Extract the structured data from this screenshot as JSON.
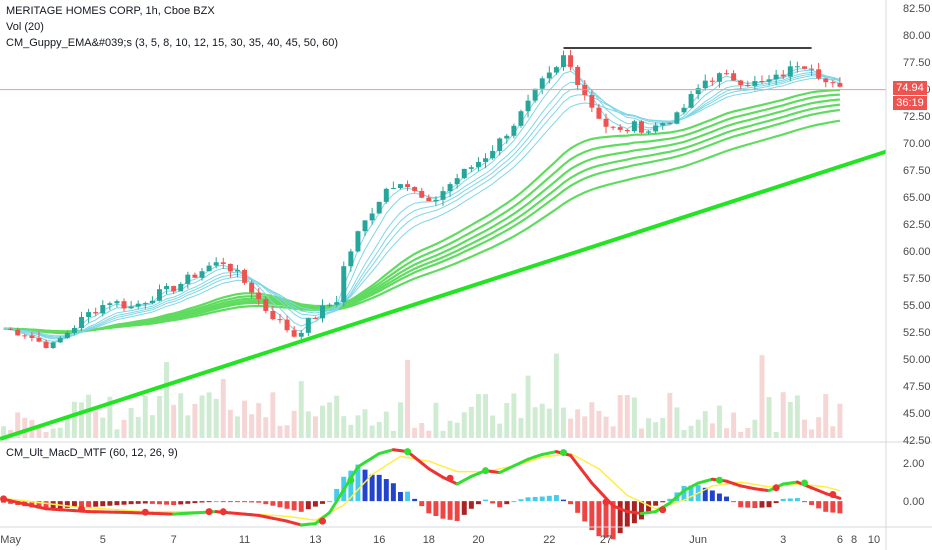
{
  "legend": {
    "symbol_line": "MERITAGE HOMES CORP, 1h, Cboe BZX",
    "volume_line": "Vol (20)",
    "guppy_line": "CM_Guppy_EMA&#039;s (3, 5, 8, 10, 12, 15, 30, 35, 40, 45, 50, 60)",
    "macd_line": "CM_Ult_MacD_MTF (60, 12, 26, 9)"
  },
  "price_badge": {
    "last_price": "74.94",
    "countdown": "36:19",
    "color": "#ef5350"
  },
  "colors": {
    "up_candle": "#26a69a",
    "down_candle": "#ef5350",
    "fast_ema": "#7fd6e6",
    "slow_ema": "#5fdc5f",
    "trendline": "#22e422",
    "resistance": "#000000",
    "macd_up": "#33dd33",
    "macd_down": "#ee3333",
    "signal": "#ffee44",
    "hist_pos_strong": "#2244cc",
    "hist_pos_weak": "#44ccee",
    "hist_neg_strong": "#aa2222",
    "hist_neg_weak": "#ee4444"
  },
  "chart_data": [
    {
      "type": "candlestick",
      "name": "price",
      "ylim": [
        42.5,
        82.5
      ],
      "y_ticks": [
        "82.50",
        "80.00",
        "77.50",
        "75.00",
        "72.50",
        "70.00",
        "67.50",
        "65.00",
        "62.50",
        "60.00",
        "57.50",
        "55.00",
        "52.50",
        "50.00",
        "47.50",
        "45.00",
        "42.50"
      ],
      "x_ticks": [
        "May",
        "5",
        "7",
        "11",
        "13",
        "16",
        "18",
        "20",
        "22",
        "27",
        "Jun",
        "3",
        "6",
        "8",
        "10"
      ],
      "close_path": [
        [
          0,
          52.8
        ],
        [
          3,
          52.4
        ],
        [
          5,
          51.6
        ],
        [
          7,
          51.2
        ],
        [
          9,
          52.5
        ],
        [
          12,
          54.2
        ],
        [
          15,
          55.4
        ],
        [
          18,
          54.8
        ],
        [
          21,
          55.8
        ],
        [
          24,
          56.6
        ],
        [
          27,
          57.8
        ],
        [
          29,
          58.6
        ],
        [
          31,
          59.0
        ],
        [
          33,
          57.8
        ],
        [
          35,
          56.4
        ],
        [
          37,
          54.6
        ],
        [
          39,
          53.4
        ],
        [
          41,
          52.2
        ],
        [
          43,
          53.4
        ],
        [
          45,
          54.6
        ],
        [
          47,
          55.5
        ],
        [
          48,
          58.5
        ],
        [
          50,
          61.6
        ],
        [
          52,
          63.8
        ],
        [
          54,
          65.8
        ],
        [
          56,
          66.6
        ],
        [
          58,
          65.4
        ],
        [
          60,
          64.2
        ],
        [
          62,
          65.6
        ],
        [
          64,
          66.8
        ],
        [
          66,
          67.8
        ],
        [
          68,
          68.8
        ],
        [
          70,
          70.2
        ],
        [
          72,
          71.8
        ],
        [
          74,
          73.6
        ],
        [
          76,
          75.6
        ],
        [
          78,
          76.8
        ],
        [
          79,
          78.0
        ],
        [
          80,
          77.0
        ],
        [
          81,
          75.8
        ],
        [
          83,
          73.4
        ],
        [
          85,
          71.6
        ],
        [
          87,
          71.0
        ],
        [
          89,
          71.6
        ],
        [
          91,
          71.2
        ],
        [
          93,
          71.9
        ],
        [
          95,
          72.4
        ],
        [
          97,
          74.2
        ],
        [
          99,
          75.8
        ],
        [
          101,
          76.2
        ],
        [
          103,
          76.0
        ],
        [
          105,
          75.6
        ],
        [
          107,
          75.5
        ],
        [
          109,
          76.0
        ],
        [
          111,
          76.8
        ],
        [
          112,
          77.4
        ],
        [
          114,
          77.2
        ],
        [
          116,
          75.6
        ],
        [
          118,
          74.9
        ]
      ],
      "ema_fast_values": [
        3,
        5,
        8,
        10,
        12,
        15
      ],
      "ema_slow_values": [
        30,
        35,
        40,
        45,
        50,
        60
      ],
      "trendline": {
        "from": [
          0,
          42.6
        ],
        "to": [
          125,
          69.2
        ]
      },
      "resistance_level": 78.8,
      "resistance_range": [
        79,
        114
      ],
      "last_price": 74.94
    },
    {
      "type": "bar",
      "name": "volume",
      "bar_count": 120
    },
    {
      "type": "line",
      "name": "macd",
      "ylim": [
        -1.2,
        3.0
      ],
      "y_ticks": [
        "2.00",
        "0.00"
      ],
      "macd_path": [
        [
          0,
          0.1
        ],
        [
          6,
          -0.4
        ],
        [
          12,
          -0.55
        ],
        [
          18,
          -0.6
        ],
        [
          24,
          -0.68
        ],
        [
          30,
          -0.55
        ],
        [
          36,
          -0.75
        ],
        [
          40,
          -1.05
        ],
        [
          42,
          -1.25
        ],
        [
          44,
          -1.18
        ],
        [
          46,
          -0.6
        ],
        [
          48,
          0.6
        ],
        [
          50,
          1.8
        ],
        [
          53,
          2.5
        ],
        [
          55,
          2.7
        ],
        [
          57,
          2.6
        ],
        [
          60,
          1.7
        ],
        [
          62,
          1.25
        ],
        [
          64,
          0.9
        ],
        [
          66,
          1.3
        ],
        [
          68,
          1.6
        ],
        [
          70,
          1.5
        ],
        [
          72,
          1.85
        ],
        [
          74,
          2.2
        ],
        [
          76,
          2.45
        ],
        [
          78,
          2.6
        ],
        [
          80,
          2.4
        ],
        [
          83,
          0.95
        ],
        [
          86,
          -0.25
        ],
        [
          88,
          -0.55
        ],
        [
          90,
          -0.65
        ],
        [
          92,
          -0.55
        ],
        [
          94,
          -0.1
        ],
        [
          96,
          0.55
        ],
        [
          98,
          0.95
        ],
        [
          100,
          1.15
        ],
        [
          102,
          1.05
        ],
        [
          104,
          0.8
        ],
        [
          106,
          0.65
        ],
        [
          108,
          0.55
        ],
        [
          110,
          0.9
        ],
        [
          112,
          1.0
        ],
        [
          114,
          0.7
        ],
        [
          116,
          0.4
        ],
        [
          118,
          0.15
        ]
      ],
      "signal_path": [
        [
          0,
          0.15
        ],
        [
          10,
          -0.3
        ],
        [
          20,
          -0.55
        ],
        [
          30,
          -0.55
        ],
        [
          40,
          -0.8
        ],
        [
          44,
          -1.0
        ],
        [
          48,
          -0.2
        ],
        [
          52,
          1.4
        ],
        [
          56,
          2.35
        ],
        [
          60,
          2.1
        ],
        [
          64,
          1.55
        ],
        [
          68,
          1.55
        ],
        [
          72,
          1.85
        ],
        [
          76,
          2.3
        ],
        [
          80,
          2.5
        ],
        [
          84,
          1.7
        ],
        [
          88,
          0.3
        ],
        [
          92,
          -0.4
        ],
        [
          96,
          0.05
        ],
        [
          100,
          0.8
        ],
        [
          104,
          1.0
        ],
        [
          108,
          0.75
        ],
        [
          112,
          0.9
        ],
        [
          116,
          0.75
        ],
        [
          118,
          0.55
        ]
      ],
      "cross_points": [
        [
          0,
          0.12
        ],
        [
          11,
          -0.42
        ],
        [
          20,
          -0.58
        ],
        [
          29,
          -0.55
        ],
        [
          31,
          -0.56
        ],
        [
          45,
          -1.05
        ],
        [
          49,
          1.1
        ],
        [
          57,
          2.6
        ],
        [
          63,
          1.2
        ],
        [
          68,
          1.6
        ],
        [
          79,
          2.55
        ],
        [
          85,
          -0.05
        ],
        [
          93,
          -0.45
        ],
        [
          101,
          1.1
        ],
        [
          109,
          0.7
        ],
        [
          113,
          0.95
        ],
        [
          117,
          0.35
        ]
      ]
    }
  ]
}
